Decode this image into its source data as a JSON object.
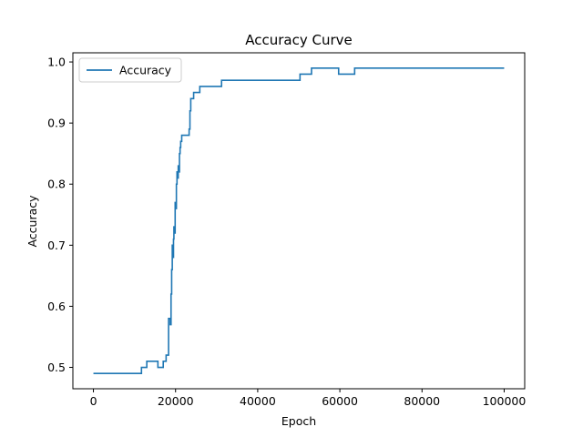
{
  "chart_data": {
    "type": "line",
    "title": "Accuracy Curve",
    "xlabel": "Epoch",
    "ylabel": "Accuracy",
    "xlim": [
      -5000,
      105000
    ],
    "ylim": [
      0.465,
      1.015
    ],
    "xticks": [
      0,
      20000,
      40000,
      60000,
      80000,
      100000
    ],
    "yticks": [
      0.5,
      0.6,
      0.7,
      0.8,
      0.9,
      1.0
    ],
    "xtick_labels": [
      "0",
      "20000",
      "40000",
      "60000",
      "80000",
      "100000"
    ],
    "ytick_labels": [
      "0.5",
      "0.6",
      "0.7",
      "0.8",
      "0.9",
      "1.0"
    ],
    "grid": false,
    "legend_position": "upper-left",
    "series": [
      {
        "name": "Accuracy",
        "color": "#1f77b4",
        "step": true,
        "x": [
          0,
          11700,
          13000,
          15700,
          17000,
          17700,
          18300,
          18700,
          18900,
          19050,
          19200,
          19350,
          19500,
          19600,
          19750,
          19900,
          20050,
          20200,
          20350,
          20500,
          20650,
          20800,
          20950,
          21100,
          21250,
          21500,
          22000,
          23300,
          23500,
          23700,
          24400,
          25900,
          31200,
          50300,
          53100,
          59700,
          63600,
          100000
        ],
        "y": [
          0.49,
          0.5,
          0.51,
          0.5,
          0.51,
          0.52,
          0.58,
          0.57,
          0.62,
          0.66,
          0.7,
          0.68,
          0.71,
          0.73,
          0.72,
          0.77,
          0.76,
          0.8,
          0.82,
          0.81,
          0.83,
          0.82,
          0.85,
          0.86,
          0.87,
          0.88,
          0.88,
          0.89,
          0.92,
          0.94,
          0.95,
          0.96,
          0.97,
          0.98,
          0.99,
          0.98,
          0.99,
          0.99
        ]
      }
    ]
  }
}
